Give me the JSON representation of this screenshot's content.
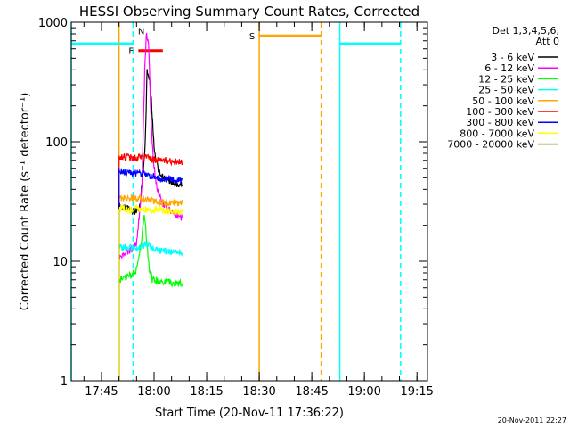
{
  "chart_data": {
    "type": "line",
    "title": "HESSI Observing Summary Count Rates, Corrected",
    "xlabel": "Start Time (20-Nov-11 17:36:22)",
    "ylabel": "Corrected Count Rate (s⁻¹ detector⁻¹)",
    "x_scale": "time",
    "y_scale": "log",
    "xlim": [
      "17:36:22",
      "19:18:00"
    ],
    "ylim": [
      1,
      1000
    ],
    "x_ticks": [
      "17:45",
      "18:00",
      "18:15",
      "18:30",
      "18:45",
      "19:00",
      "19:15"
    ],
    "y_ticks": [
      {
        "value": 1,
        "label": "1"
      },
      {
        "value": 10,
        "label": "10"
      },
      {
        "value": 100,
        "label": "100"
      },
      {
        "value": 1000,
        "label": "1000"
      }
    ],
    "legend_header": [
      "Det 1,3,4,5,6,",
      "Att 0"
    ],
    "legend_position": "right",
    "series": [
      {
        "name": "3 - 6 keV",
        "color": "#000000",
        "points": [
          [
            "17:50:00",
            29
          ],
          [
            "17:53:00",
            27
          ],
          [
            "17:55:00",
            26
          ],
          [
            "17:56:00",
            28
          ],
          [
            "17:57:30",
            100
          ],
          [
            "17:58:00",
            400
          ],
          [
            "17:58:40",
            330
          ],
          [
            "17:59:20",
            200
          ],
          [
            "18:00:00",
            90
          ],
          [
            "18:01:00",
            62
          ],
          [
            "18:02:00",
            52
          ],
          [
            "18:04:00",
            47
          ],
          [
            "18:06:00",
            45
          ],
          [
            "18:08:00",
            44
          ]
        ]
      },
      {
        "name": "6 - 12 keV",
        "color": "#ff00ff",
        "points": [
          [
            "17:50:00",
            11
          ],
          [
            "17:53:00",
            12
          ],
          [
            "17:55:00",
            14
          ],
          [
            "17:56:30",
            40
          ],
          [
            "17:57:20",
            400
          ],
          [
            "17:57:50",
            850
          ],
          [
            "17:58:30",
            600
          ],
          [
            "17:59:00",
            180
          ],
          [
            "17:59:40",
            80
          ],
          [
            "18:00:30",
            45
          ],
          [
            "18:02:00",
            32
          ],
          [
            "18:04:00",
            27
          ],
          [
            "18:06:00",
            25
          ],
          [
            "18:08:00",
            23
          ]
        ]
      },
      {
        "name": "12 - 25 keV",
        "color": "#00ff00",
        "points": [
          [
            "17:50:00",
            7
          ],
          [
            "17:53:00",
            7.5
          ],
          [
            "17:55:00",
            8.5
          ],
          [
            "17:56:30",
            15
          ],
          [
            "17:57:10",
            25
          ],
          [
            "17:57:50",
            16
          ],
          [
            "17:58:30",
            9
          ],
          [
            "17:59:30",
            7
          ],
          [
            "18:02:00",
            6.8
          ],
          [
            "18:05:00",
            6.6
          ],
          [
            "18:08:00",
            6.5
          ]
        ]
      },
      {
        "name": "25 - 50 keV",
        "color": "#00ffff",
        "points": [
          [
            "17:50:00",
            13
          ],
          [
            "17:53:00",
            13
          ],
          [
            "17:55:00",
            13
          ],
          [
            "17:57:00",
            13.5
          ],
          [
            "17:58:00",
            14
          ],
          [
            "18:00:00",
            12.5
          ],
          [
            "18:04:00",
            12
          ],
          [
            "18:08:00",
            11.8
          ]
        ]
      },
      {
        "name": "50 - 100 keV",
        "color": "#ffa500",
        "points": [
          [
            "17:50:00",
            33
          ],
          [
            "17:53:00",
            34
          ],
          [
            "17:56:00",
            34
          ],
          [
            "17:58:00",
            33
          ],
          [
            "18:01:00",
            31
          ],
          [
            "18:04:00",
            31
          ],
          [
            "18:08:00",
            31
          ]
        ]
      },
      {
        "name": "100 - 300 keV",
        "color": "#ff0000",
        "points": [
          [
            "17:50:00",
            76
          ],
          [
            "17:53:00",
            74
          ],
          [
            "17:56:00",
            74
          ],
          [
            "17:58:00",
            73
          ],
          [
            "18:00:00",
            71
          ],
          [
            "18:03:00",
            70
          ],
          [
            "18:08:00",
            68
          ]
        ]
      },
      {
        "name": "300 - 800 keV",
        "color": "#0000ff",
        "points": [
          [
            "17:50:00",
            57
          ],
          [
            "17:53:00",
            55
          ],
          [
            "17:56:00",
            54
          ],
          [
            "17:58:00",
            53
          ],
          [
            "18:00:00",
            51
          ],
          [
            "18:03:00",
            49
          ],
          [
            "18:08:00",
            47
          ]
        ]
      },
      {
        "name": "800 - 7000 keV",
        "color": "#ffff00",
        "points": [
          [
            "17:50:00",
            28
          ],
          [
            "17:53:00",
            27
          ],
          [
            "17:56:00",
            27.5
          ],
          [
            "17:58:00",
            27
          ],
          [
            "18:01:00",
            27
          ],
          [
            "18:04:00",
            26.5
          ],
          [
            "18:08:00",
            26
          ]
        ]
      },
      {
        "name": "7000 - 20000 keV",
        "color": "#808000",
        "points": []
      }
    ],
    "annotations": [
      {
        "label": "F",
        "color": "#ff0000",
        "kind": "bar",
        "x_start": "17:55:30",
        "x_end": "18:02:30",
        "y": 580
      },
      {
        "label": "N",
        "color": "#00ffff",
        "kind": "text",
        "x": "17:56:20",
        "y": 850
      },
      {
        "label": "S",
        "color": "#ffa500",
        "kind": "bar",
        "x_start": "18:30:00",
        "x_end": "18:47:40",
        "y": 770
      }
    ],
    "vertical_markers": [
      {
        "x": "17:36:22",
        "color": "#00ffff",
        "style": "solid"
      },
      {
        "x": "17:54:00",
        "color": "#00ffff",
        "style": "dashed"
      },
      {
        "x": "17:50:00",
        "color": "#ffa500",
        "style": "solid"
      },
      {
        "x": "18:30:00",
        "color": "#ffa500",
        "style": "solid"
      },
      {
        "x": "18:47:40",
        "color": "#ffa500",
        "style": "dashed"
      },
      {
        "x": "18:53:00",
        "color": "#00ffff",
        "style": "solid"
      },
      {
        "x": "19:10:20",
        "color": "#00ffff",
        "style": "dashed"
      }
    ],
    "horizontal_bars": [
      {
        "x_start": "17:36:22",
        "x_end": "17:54:00",
        "y": 660,
        "color": "#00ffff"
      },
      {
        "x_start": "18:53:00",
        "x_end": "19:10:20",
        "y": 660,
        "color": "#00ffff"
      }
    ]
  },
  "footer_timestamp": "20-Nov-2011 22:27"
}
